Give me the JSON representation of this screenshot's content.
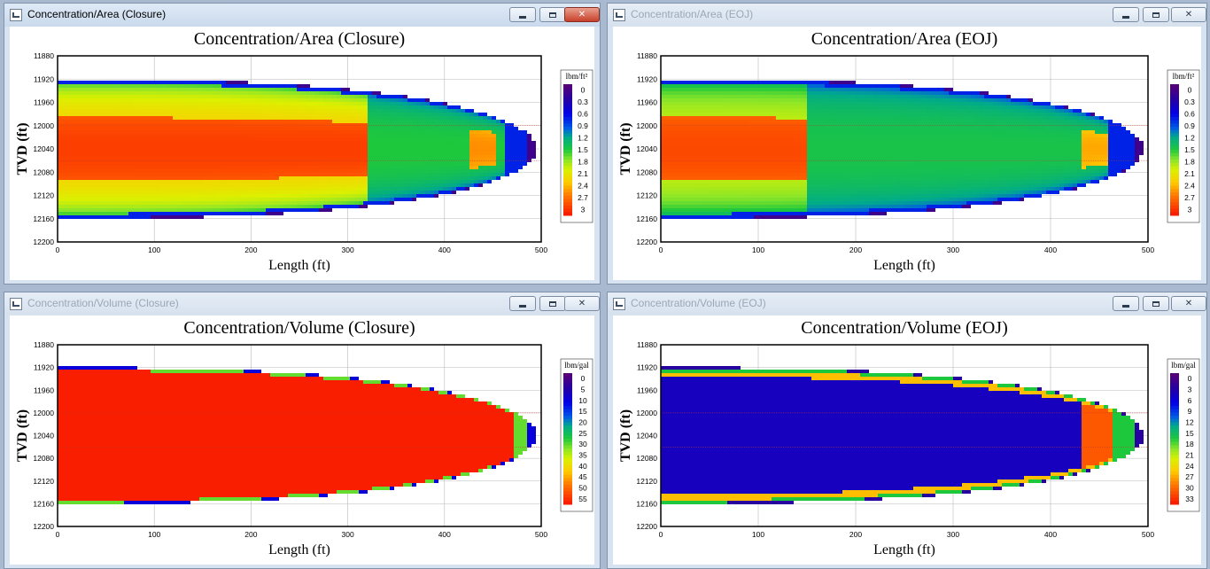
{
  "windows": [
    {
      "window_title": "Concentration/Area (Closure)",
      "active": true,
      "chart_data": {
        "type": "heatmap",
        "title": "Concentration/Area (Closure)",
        "xlabel": "Length (ft)",
        "ylabel": "TVD (ft)",
        "xlim": [
          0,
          500
        ],
        "ylim": [
          11880,
          12200
        ],
        "y_inverted": true,
        "x_ticks": [
          "0",
          "100",
          "200",
          "300",
          "400",
          "500"
        ],
        "y_ticks": [
          "11880",
          "11920",
          "11960",
          "12000",
          "12040",
          "12080",
          "12120",
          "12160",
          "12200"
        ],
        "colorbar": {
          "unit": "lbm/ft²",
          "min": 0,
          "max": 3,
          "labels": [
            "0",
            "0.3",
            "0.6",
            "0.9",
            "1.2",
            "1.5",
            "1.8",
            "2.1",
            "2.4",
            "2.7",
            "3"
          ]
        },
        "field": {
          "kind": "area",
          "core_value": 2.85,
          "mid_value": 2.25,
          "mid_length": 322,
          "outer_value": 1.5,
          "tip_value": 2.5,
          "ring_length": 425,
          "wings_value": 1.3
        },
        "fracture": {
          "top_depth": 11920,
          "bottom_depth": 12160,
          "center_depth": 12040,
          "tip_length": 495
        }
      }
    },
    {
      "window_title": "Concentration/Area (EOJ)",
      "active": false,
      "chart_data": {
        "type": "heatmap",
        "title": "Concentration/Area (EOJ)",
        "xlabel": "Length (ft)",
        "ylabel": "TVD (ft)",
        "xlim": [
          0,
          500
        ],
        "ylim": [
          11880,
          12200
        ],
        "y_inverted": true,
        "x_ticks": [
          "0",
          "100",
          "200",
          "300",
          "400",
          "500"
        ],
        "y_ticks": [
          "11880",
          "11920",
          "11960",
          "12000",
          "12040",
          "12080",
          "12120",
          "12160",
          "12200"
        ],
        "colorbar": {
          "unit": "lbm/ft²",
          "min": 0,
          "max": 3,
          "labels": [
            "0",
            "0.3",
            "0.6",
            "0.9",
            "1.2",
            "1.5",
            "1.8",
            "2.1",
            "2.4",
            "2.7",
            "3"
          ]
        },
        "field": {
          "kind": "area",
          "core_value": 2.8,
          "mid_value": 1.95,
          "mid_length": 150,
          "outer_value": 1.45,
          "tip_value": 2.4,
          "ring_length": 430,
          "wings_value": 1.3
        },
        "fracture": {
          "top_depth": 11920,
          "bottom_depth": 12160,
          "center_depth": 12040,
          "tip_length": 495
        }
      }
    },
    {
      "window_title": "Concentration/Volume (Closure)",
      "active": false,
      "chart_data": {
        "type": "heatmap",
        "title": "Concentration/Volume (Closure)",
        "xlabel": "Length (ft)",
        "ylabel": "TVD (ft)",
        "xlim": [
          0,
          500
        ],
        "ylim": [
          11880,
          12200
        ],
        "y_inverted": true,
        "x_ticks": [
          "0",
          "100",
          "200",
          "300",
          "400",
          "500"
        ],
        "y_ticks": [
          "11880",
          "11920",
          "11960",
          "12000",
          "12040",
          "12080",
          "12120",
          "12160",
          "12200"
        ],
        "colorbar": {
          "unit": "lbm/gal",
          "min": 0,
          "max": 55,
          "labels": [
            "0",
            "5",
            "10",
            "15",
            "20",
            "25",
            "30",
            "35",
            "40",
            "45",
            "50",
            "55"
          ]
        },
        "field": {
          "kind": "volume_closure",
          "interior_value": 55
        },
        "fracture": {
          "top_depth": 11920,
          "bottom_depth": 12160,
          "center_depth": 12040,
          "tip_length": 495
        }
      }
    },
    {
      "window_title": "Concentration/Volume (EOJ)",
      "active": false,
      "chart_data": {
        "type": "heatmap",
        "title": "Concentration/Volume (EOJ)",
        "xlabel": "Length (ft)",
        "ylabel": "TVD (ft)",
        "xlim": [
          0,
          500
        ],
        "ylim": [
          11880,
          12200
        ],
        "y_inverted": true,
        "x_ticks": [
          "0",
          "100",
          "200",
          "300",
          "400",
          "500"
        ],
        "y_ticks": [
          "11880",
          "11920",
          "11960",
          "12000",
          "12040",
          "12080",
          "12120",
          "12160",
          "12200"
        ],
        "colorbar": {
          "unit": "lbm/gal",
          "min": 0,
          "max": 33,
          "labels": [
            "0",
            "3",
            "6",
            "9",
            "12",
            "15",
            "18",
            "21",
            "24",
            "27",
            "30",
            "33"
          ]
        },
        "field": {
          "kind": "volume_eoj",
          "interior_value": 5,
          "tip_value": 30,
          "ring_length": 430
        },
        "fracture": {
          "top_depth": 11920,
          "bottom_depth": 12160,
          "center_depth": 12040,
          "tip_length": 495
        }
      }
    }
  ]
}
